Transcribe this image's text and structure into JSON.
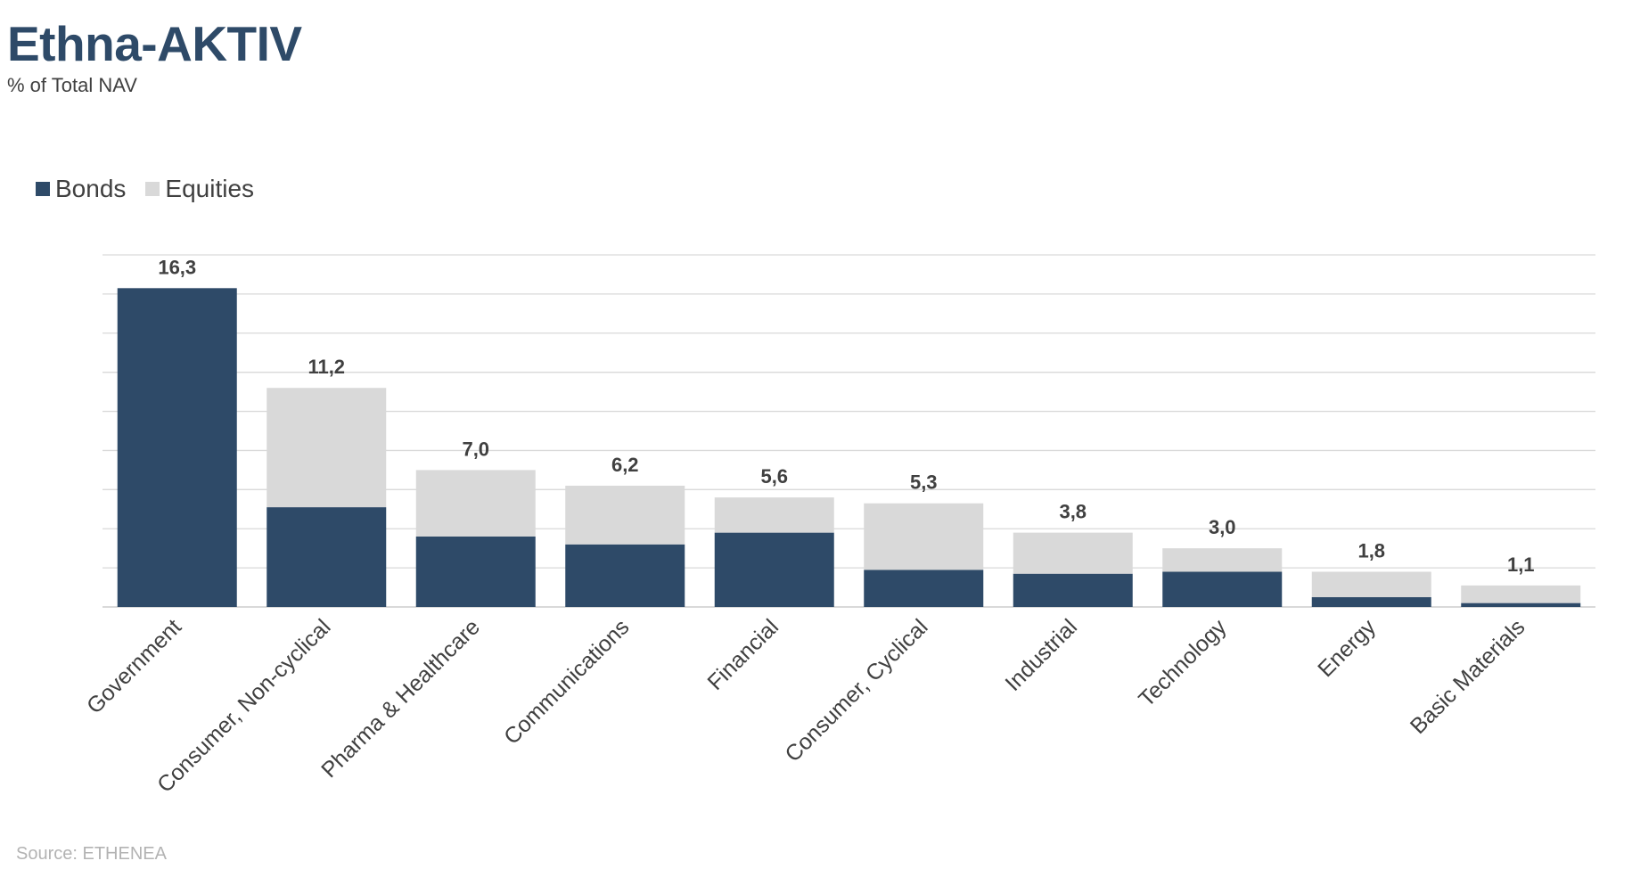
{
  "header": {
    "title": "Ethna-AKTIV",
    "subtitle": "% of Total NAV"
  },
  "footer": {
    "source": "Source: ETHENEA"
  },
  "colors": {
    "bonds": "#2e4a68",
    "equities": "#d9d9d9",
    "grid": "#d9d9d9",
    "text": "#404040",
    "title": "#2e4a68"
  },
  "chart_data": {
    "type": "bar",
    "stacked": true,
    "title": "Ethna-AKTIV",
    "subtitle": "% of Total NAV",
    "xlabel": "",
    "ylabel": "",
    "ylim": [
      0,
      18
    ],
    "grid": true,
    "legend_position": "top-left",
    "categories": [
      "Government",
      "Consumer, Non-cyclical",
      "Pharma & Healthcare",
      "Communications",
      "Financial",
      "Consumer, Cyclical",
      "Industrial",
      "Technology",
      "Energy",
      "Basic Materials"
    ],
    "series": [
      {
        "name": "Bonds",
        "values": [
          16.3,
          5.1,
          3.6,
          3.2,
          3.8,
          1.9,
          1.7,
          1.8,
          0.5,
          0.2
        ]
      },
      {
        "name": "Equities",
        "values": [
          0.0,
          6.1,
          3.4,
          3.0,
          1.8,
          3.4,
          2.1,
          1.2,
          1.3,
          0.9
        ]
      }
    ],
    "totals": [
      "16,3",
      "11,2",
      "7,0",
      "6,2",
      "5,6",
      "5,3",
      "3,8",
      "3,0",
      "1,8",
      "1,1"
    ]
  }
}
